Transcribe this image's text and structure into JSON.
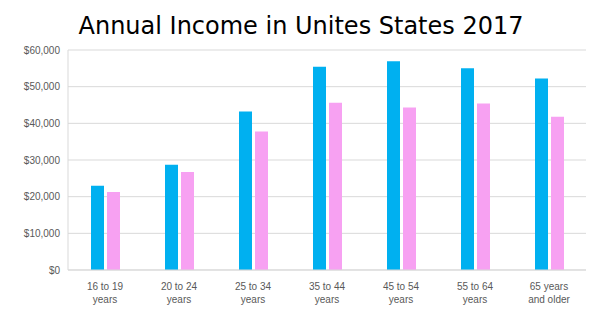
{
  "chart_data": {
    "type": "bar",
    "title": "Annual Income in Unites States 2017",
    "categories": [
      "16 to 19\nyears",
      "20 to 24\nyears",
      "25 to 34\nyears",
      "35 to 44\nyears",
      "45 to 54\nyears",
      "55 to 64\nyears",
      "65 years\nand older"
    ],
    "series": [
      {
        "color": "#00b0f0",
        "values": [
          23000,
          28700,
          43200,
          55400,
          56900,
          55000,
          52200
        ]
      },
      {
        "color": "#f7a1f2",
        "values": [
          21300,
          26700,
          37800,
          45600,
          44300,
          45400,
          41800
        ]
      }
    ],
    "ylim": [
      0,
      60000
    ],
    "yticks": [
      {
        "value": 0,
        "label": "$0"
      },
      {
        "value": 10000,
        "label": "$10,000"
      },
      {
        "value": 20000,
        "label": "$20,000"
      },
      {
        "value": 30000,
        "label": "$30,000"
      },
      {
        "value": 40000,
        "label": "$40,000"
      },
      {
        "value": 50000,
        "label": "$50,000"
      },
      {
        "value": 60000,
        "label": "$60,000"
      }
    ],
    "grid": true
  }
}
